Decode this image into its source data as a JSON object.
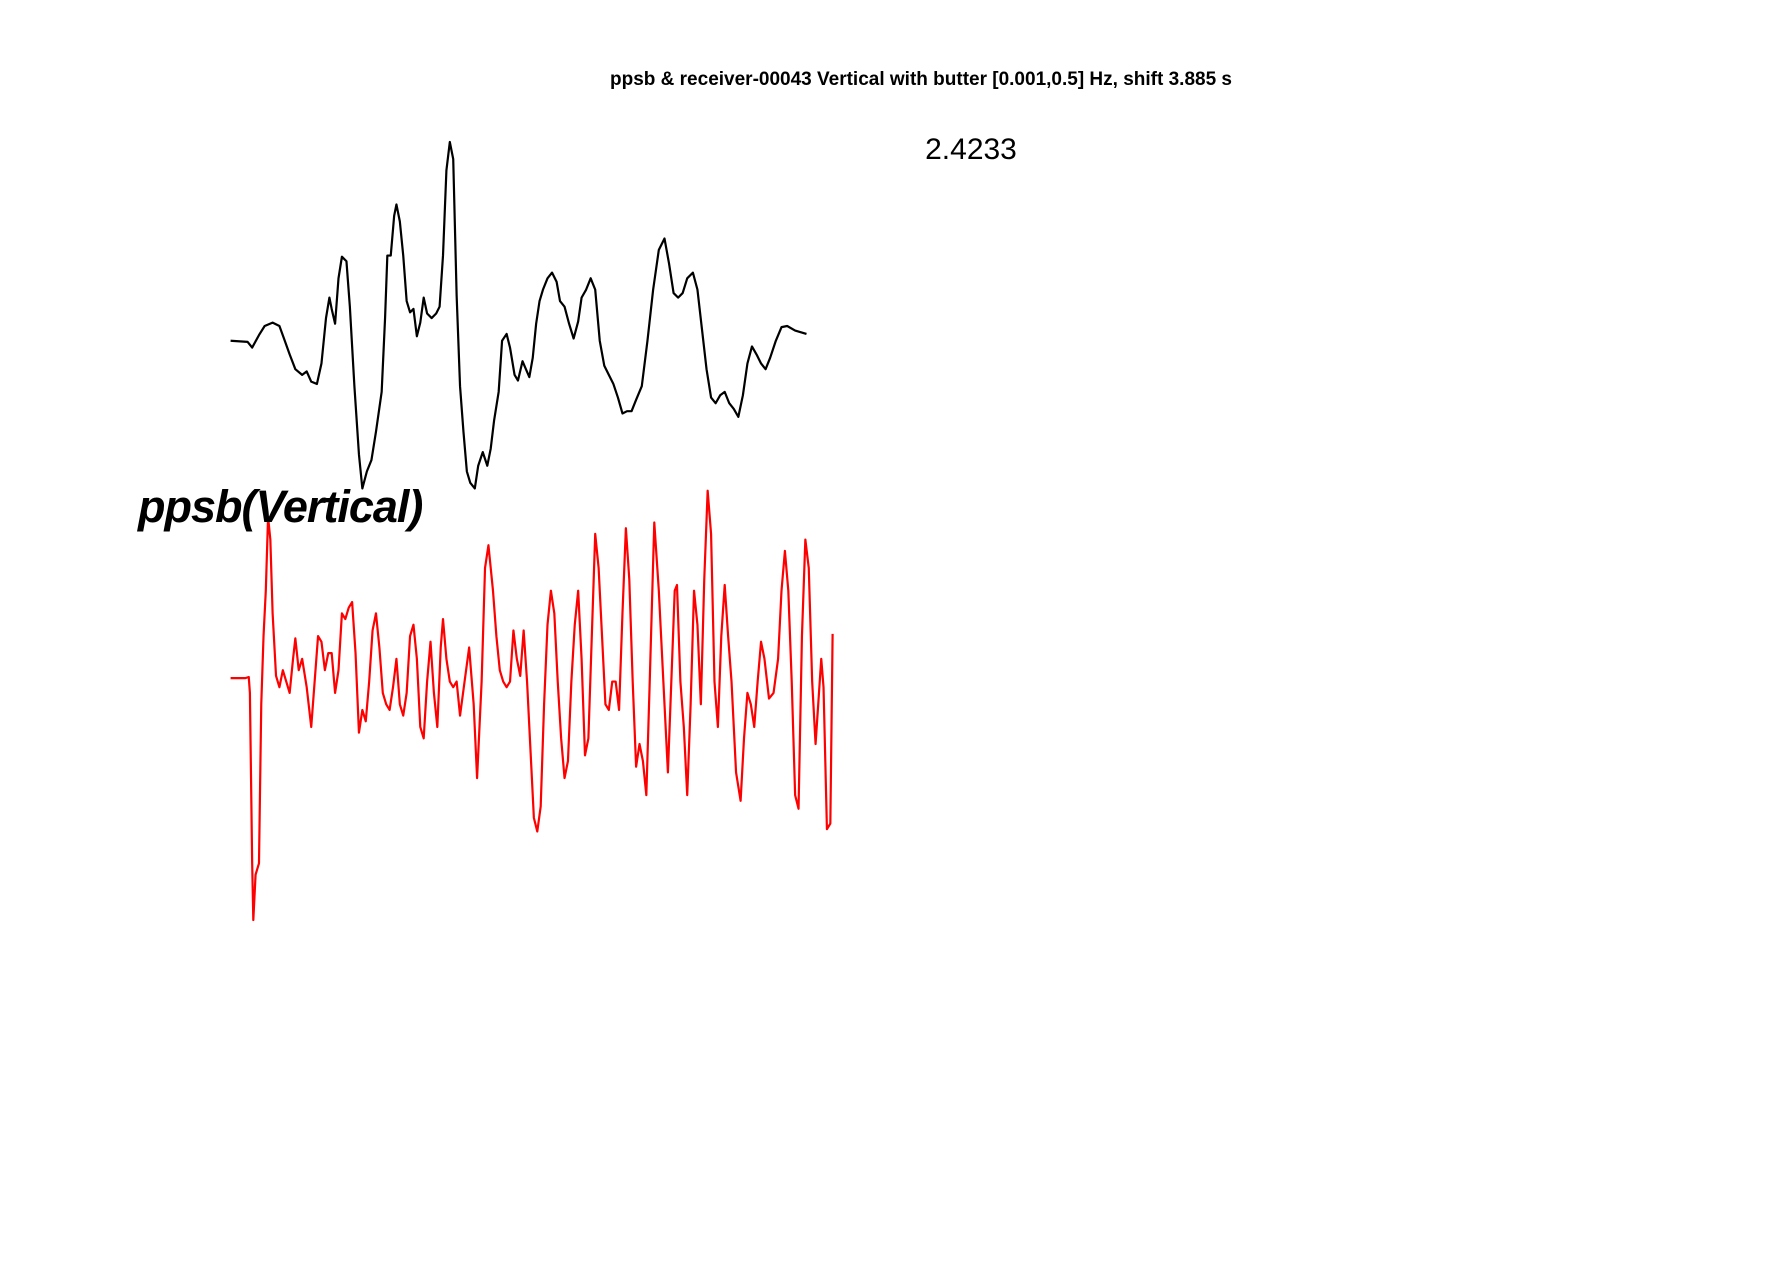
{
  "chart_data": [
    {
      "type": "line",
      "title": "ppsb & receiver-00043 Vertical with butter [0.001,0.5] Hz, shift 3.885 s",
      "annotation": "2.4233",
      "color": "#000000",
      "xlim": [
        0,
        530
      ],
      "ylim": [
        -135,
        180
      ],
      "x": [
        0,
        15,
        19,
        25,
        30,
        37,
        43,
        47,
        52,
        57,
        63,
        67,
        71,
        76,
        80,
        84,
        87,
        89,
        92,
        95,
        98,
        102,
        105,
        109,
        113,
        116,
        120,
        124,
        128,
        133,
        136,
        138,
        141,
        144,
        146,
        149,
        152,
        155,
        158,
        161,
        164,
        167,
        170,
        173,
        177,
        181,
        184,
        187,
        190,
        193,
        196,
        199,
        202,
        205,
        208,
        211,
        215,
        218,
        222,
        226,
        229,
        232,
        236,
        239,
        243,
        246,
        250,
        253,
        257,
        260,
        263,
        266,
        269,
        272,
        275,
        279,
        283,
        287,
        290,
        294,
        298,
        302,
        306,
        309,
        313,
        317,
        321,
        325,
        329,
        333,
        337,
        341,
        345,
        349,
        353,
        357,
        362,
        367,
        372,
        377,
        382,
        386,
        390,
        394,
        398,
        402,
        407,
        411,
        415,
        419,
        423,
        427,
        431,
        435,
        439,
        443,
        447,
        451,
        455,
        459,
        463,
        467,
        471,
        475,
        480,
        485,
        490,
        497,
        507
      ],
      "values": [
        0,
        -1,
        -6,
        5,
        13,
        16,
        13,
        2,
        -12,
        -25,
        -30,
        -27,
        -36,
        -38,
        -20,
        20,
        38,
        28,
        15,
        55,
        74,
        70,
        30,
        -40,
        -100,
        -130,
        -115,
        -105,
        -80,
        -45,
        20,
        75,
        75,
        110,
        120,
        105,
        75,
        35,
        25,
        28,
        4,
        16,
        38,
        24,
        20,
        24,
        30,
        75,
        150,
        175,
        160,
        40,
        -40,
        -80,
        -115,
        -125,
        -130,
        -110,
        -98,
        -110,
        -95,
        -70,
        -45,
        0,
        6,
        -6,
        -30,
        -35,
        -18,
        -25,
        -32,
        -15,
        15,
        35,
        45,
        55,
        60,
        52,
        35,
        30,
        15,
        2,
        17,
        38,
        45,
        55,
        45,
        0,
        -22,
        -30,
        -38,
        -50,
        -64,
        -62,
        -62,
        -52,
        -40,
        0,
        45,
        80,
        90,
        68,
        42,
        38,
        42,
        55,
        60,
        45,
        10,
        -25,
        -50,
        -55,
        -48,
        -45,
        -55,
        -60,
        -67,
        -48,
        -20,
        -5,
        -12,
        -20,
        -25,
        -15,
        0,
        12,
        13,
        9,
        6
      ]
    },
    {
      "type": "line",
      "label": "ppsb(Vertical)",
      "color": "#ff0000",
      "xlim": [
        0,
        530
      ],
      "ylim": [
        -215,
        170
      ],
      "x": [
        0,
        13,
        16,
        17,
        19,
        20,
        22,
        25,
        27,
        29,
        31,
        33,
        35,
        37,
        40,
        43,
        46,
        49,
        52,
        55,
        57,
        60,
        63,
        67,
        71,
        74,
        77,
        80,
        83,
        86,
        89,
        92,
        95,
        98,
        101,
        104,
        107,
        110,
        113,
        116,
        119,
        122,
        125,
        128,
        131,
        134,
        137,
        140,
        143,
        146,
        149,
        152,
        155,
        158,
        161,
        164,
        167,
        170,
        173,
        176,
        179,
        182,
        185,
        187,
        190,
        193,
        196,
        199,
        202,
        206,
        210,
        214,
        217,
        221,
        224,
        227,
        231,
        234,
        237,
        240,
        243,
        246,
        249,
        252,
        255,
        258,
        261,
        264,
        267,
        270,
        273,
        276,
        279,
        282,
        285,
        288,
        291,
        294,
        297,
        300,
        303,
        306,
        309,
        312,
        315,
        318,
        321,
        324,
        327,
        330,
        333,
        336,
        339,
        342,
        345,
        348,
        351,
        354,
        357,
        360,
        363,
        366,
        369,
        373,
        377,
        381,
        385,
        388,
        391,
        393,
        396,
        399,
        402,
        405,
        408,
        411,
        414,
        417,
        420,
        423,
        426,
        429,
        432,
        435,
        438,
        441,
        445,
        449,
        452,
        455,
        458,
        461,
        464,
        467,
        470,
        474,
        478,
        482,
        485,
        488,
        491,
        494,
        497,
        500,
        503,
        506,
        509,
        512,
        515,
        518,
        520,
        522,
        525,
        528,
        530
      ],
      "values": [
        0,
        0,
        1,
        -13,
        -163,
        -213,
        -173,
        -163,
        -23,
        37,
        77,
        142,
        122,
        57,
        2,
        -8,
        7,
        -3,
        -13,
        17,
        35,
        7,
        17,
        -8,
        -43,
        -3,
        37,
        32,
        7,
        22,
        22,
        -13,
        7,
        57,
        52,
        62,
        67,
        22,
        -48,
        -28,
        -38,
        -3,
        42,
        57,
        27,
        -13,
        -23,
        -28,
        -8,
        17,
        -23,
        -33,
        -13,
        37,
        47,
        17,
        -43,
        -53,
        -3,
        32,
        -13,
        -43,
        27,
        52,
        17,
        -3,
        -8,
        -3,
        -33,
        -3,
        27,
        -23,
        -88,
        -3,
        97,
        117,
        77,
        37,
        7,
        -3,
        -8,
        -3,
        42,
        17,
        2,
        42,
        -3,
        -63,
        -123,
        -135,
        -113,
        -23,
        47,
        77,
        57,
        -3,
        -53,
        -88,
        -73,
        -3,
        47,
        77,
        17,
        -68,
        -53,
        37,
        127,
        97,
        37,
        -23,
        -28,
        -3,
        -3,
        -28,
        57,
        132,
        87,
        -3,
        -78,
        -58,
        -73,
        -103,
        -3,
        137,
        77,
        -3,
        -83,
        -3,
        77,
        82,
        -3,
        -43,
        -103,
        -23,
        77,
        47,
        -23,
        87,
        165,
        127,
        -3,
        -43,
        37,
        82,
        37,
        -3,
        -83,
        -108,
        -53,
        -13,
        -23,
        -43,
        -3,
        32,
        17,
        -18,
        -13,
        17,
        77,
        112,
        77,
        -3,
        -103,
        -115,
        37,
        122,
        97,
        -3,
        -58,
        -13,
        17,
        -8,
        -133,
        -128,
        39
      ]
    }
  ]
}
